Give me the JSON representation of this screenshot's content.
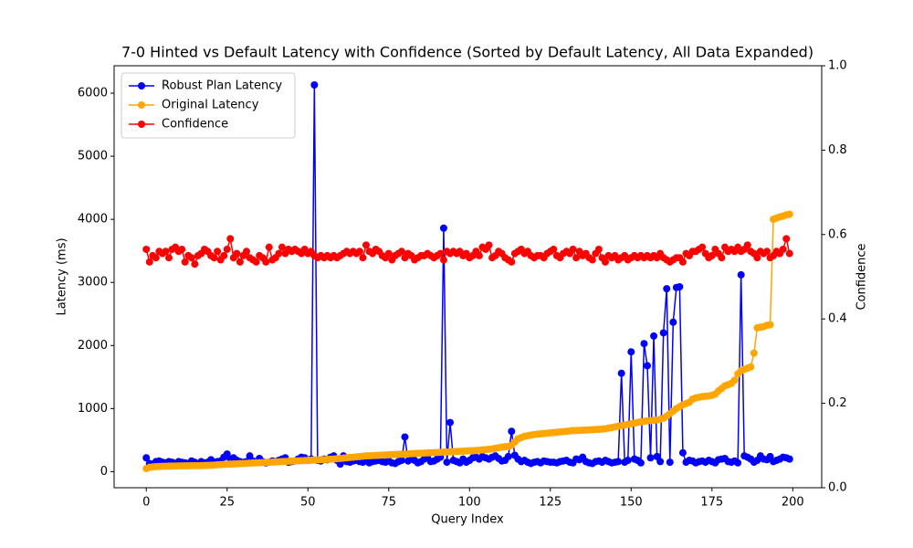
{
  "chart_data": {
    "type": "line",
    "title": "7-0 Hinted vs Default Latency with Confidence (Sorted by Default Latency, All Data Expanded)",
    "x_label": "Query Index",
    "y_label": "Latency (ms)",
    "y2_label": "Confidence",
    "xlim": [
      -9.95,
      208.95
    ],
    "xticks": [
      0,
      25,
      50,
      75,
      100,
      125,
      150,
      175,
      200
    ],
    "ylim": [
      -254,
      6434
    ],
    "yticks": [
      0,
      1000,
      2000,
      3000,
      4000,
      5000,
      6000
    ],
    "y2lim": [
      0,
      1
    ],
    "y2ticks": [
      {
        "value": 0,
        "label": "0.0"
      },
      0.2,
      0.4,
      0.6,
      0.8,
      {
        "value": 1,
        "label": "1.0"
      }
    ],
    "legend": "upper left",
    "x": [
      0,
      1,
      2,
      3,
      4,
      5,
      6,
      7,
      8,
      9,
      10,
      11,
      12,
      13,
      14,
      15,
      16,
      17,
      18,
      19,
      20,
      21,
      22,
      23,
      24,
      25,
      26,
      27,
      28,
      29,
      30,
      31,
      32,
      33,
      34,
      35,
      36,
      37,
      38,
      39,
      40,
      41,
      42,
      43,
      44,
      45,
      46,
      47,
      48,
      49,
      50,
      51,
      52,
      53,
      54,
      55,
      56,
      57,
      58,
      59,
      60,
      61,
      62,
      63,
      64,
      65,
      66,
      67,
      68,
      69,
      70,
      71,
      72,
      73,
      74,
      75,
      76,
      77,
      78,
      79,
      80,
      81,
      82,
      83,
      84,
      85,
      86,
      87,
      88,
      89,
      90,
      91,
      92,
      93,
      94,
      95,
      96,
      97,
      98,
      99,
      100,
      101,
      102,
      103,
      104,
      105,
      106,
      107,
      108,
      109,
      110,
      111,
      112,
      113,
      114,
      115,
      116,
      117,
      118,
      119,
      120,
      121,
      122,
      123,
      124,
      125,
      126,
      127,
      128,
      129,
      130,
      131,
      132,
      133,
      134,
      135,
      136,
      137,
      138,
      139,
      140,
      141,
      142,
      143,
      144,
      145,
      146,
      147,
      148,
      149,
      150,
      151,
      152,
      153,
      154,
      155,
      156,
      157,
      158,
      159,
      160,
      161,
      162,
      163,
      164,
      165,
      166,
      167,
      168,
      169,
      170,
      171,
      172,
      173,
      174,
      175,
      176,
      177,
      178,
      179,
      180,
      181,
      182,
      183,
      184,
      185,
      186,
      187,
      188,
      189,
      190,
      191,
      192,
      193,
      194,
      195,
      196,
      197,
      198,
      199
    ],
    "series": [
      {
        "name": "Robust Plan Latency",
        "color": "#0000ff",
        "values": [
          220,
          130,
          120,
          160,
          170,
          150,
          140,
          160,
          150,
          130,
          160,
          150,
          140,
          130,
          170,
          150,
          120,
          160,
          140,
          150,
          190,
          150,
          160,
          170,
          230,
          280,
          200,
          220,
          180,
          160,
          150,
          160,
          250,
          170,
          150,
          210,
          160,
          140,
          150,
          170,
          160,
          180,
          200,
          220,
          150,
          160,
          170,
          200,
          230,
          220,
          180,
          200,
          6130,
          180,
          170,
          200,
          190,
          230,
          250,
          180,
          120,
          250,
          160,
          150,
          170,
          180,
          160,
          150,
          170,
          140,
          160,
          170,
          180,
          160,
          150,
          170,
          140,
          130,
          160,
          180,
          550,
          170,
          200,
          180,
          140,
          160,
          200,
          220,
          160,
          170,
          200,
          230,
          3860,
          150,
          780,
          180,
          160,
          140,
          200,
          150,
          180,
          220,
          230,
          200,
          240,
          220,
          200,
          230,
          250,
          210,
          170,
          180,
          240,
          640,
          260,
          200,
          160,
          180,
          150,
          130,
          150,
          160,
          140,
          170,
          160,
          150,
          150,
          140,
          160,
          170,
          180,
          150,
          140,
          200,
          190,
          230,
          160,
          140,
          130,
          160,
          170,
          150,
          180,
          160,
          140,
          150,
          160,
          1560,
          150,
          180,
          1900,
          200,
          180,
          140,
          2030,
          1680,
          220,
          2150,
          240,
          160,
          2200,
          2900,
          150,
          2370,
          2920,
          2930,
          300,
          150,
          180,
          170,
          140,
          160,
          170,
          150,
          180,
          160,
          140,
          190,
          200,
          210,
          160,
          150,
          170,
          140,
          3120,
          250,
          230,
          200,
          150,
          180,
          250,
          200,
          190,
          240,
          160,
          180,
          200,
          230,
          220,
          200
        ]
      },
      {
        "name": "Original Latency",
        "color": "#ffa500",
        "values": [
          50,
          70,
          75,
          80,
          82,
          85,
          87,
          88,
          90,
          90,
          92,
          92,
          93,
          94,
          95,
          95,
          96,
          97,
          98,
          100,
          102,
          105,
          110,
          112,
          115,
          118,
          120,
          122,
          125,
          128,
          130,
          132,
          135,
          138,
          140,
          142,
          145,
          147,
          150,
          152,
          155,
          157,
          160,
          162,
          165,
          167,
          170,
          172,
          175,
          177,
          180,
          182,
          185,
          187,
          190,
          192,
          195,
          198,
          200,
          205,
          210,
          215,
          220,
          225,
          230,
          235,
          240,
          245,
          250,
          252,
          255,
          258,
          260,
          262,
          265,
          267,
          270,
          272,
          275,
          277,
          280,
          282,
          285,
          288,
          290,
          292,
          295,
          298,
          300,
          302,
          305,
          307,
          310,
          312,
          315,
          318,
          320,
          322,
          325,
          328,
          330,
          333,
          336,
          340,
          345,
          350,
          355,
          360,
          370,
          380,
          390,
          395,
          400,
          420,
          470,
          520,
          540,
          560,
          570,
          580,
          590,
          595,
          600,
          605,
          610,
          615,
          620,
          625,
          630,
          635,
          640,
          645,
          650,
          652,
          655,
          658,
          660,
          662,
          665,
          668,
          670,
          675,
          680,
          690,
          700,
          710,
          720,
          730,
          740,
          750,
          760,
          770,
          780,
          790,
          800,
          805,
          810,
          815,
          820,
          830,
          850,
          880,
          920,
          960,
          1000,
          1030,
          1060,
          1080,
          1100,
          1150,
          1170,
          1180,
          1190,
          1195,
          1200,
          1210,
          1230,
          1280,
          1320,
          1360,
          1380,
          1400,
          1450,
          1550,
          1600,
          1620,
          1640,
          1660,
          1880,
          2280,
          2290,
          2300,
          2320,
          2330,
          4000,
          4020,
          4040,
          4050,
          4070,
          4080
        ]
      },
      {
        "name": "Confidence",
        "color": "#ff0000",
        "axis": "y2",
        "values": [
          0.565,
          0.535,
          0.55,
          0.545,
          0.56,
          0.555,
          0.56,
          0.545,
          0.565,
          0.57,
          0.56,
          0.565,
          0.535,
          0.55,
          0.545,
          0.53,
          0.55,
          0.555,
          0.565,
          0.56,
          0.55,
          0.545,
          0.56,
          0.54,
          0.55,
          0.565,
          0.59,
          0.545,
          0.555,
          0.535,
          0.55,
          0.56,
          0.545,
          0.54,
          0.535,
          0.55,
          0.545,
          0.535,
          0.57,
          0.54,
          0.545,
          0.555,
          0.57,
          0.555,
          0.565,
          0.56,
          0.565,
          0.56,
          0.555,
          0.565,
          0.555,
          0.56,
          0.55,
          0.545,
          0.55,
          0.545,
          0.55,
          0.545,
          0.55,
          0.545,
          0.55,
          0.555,
          0.56,
          0.555,
          0.56,
          0.555,
          0.56,
          0.545,
          0.575,
          0.56,
          0.555,
          0.565,
          0.56,
          0.55,
          0.545,
          0.555,
          0.54,
          0.55,
          0.555,
          0.56,
          0.545,
          0.555,
          0.55,
          0.54,
          0.545,
          0.55,
          0.55,
          0.555,
          0.55,
          0.545,
          0.55,
          0.555,
          0.54,
          0.56,
          0.555,
          0.56,
          0.555,
          0.56,
          0.55,
          0.555,
          0.545,
          0.55,
          0.56,
          0.55,
          0.57,
          0.565,
          0.575,
          0.545,
          0.55,
          0.56,
          0.555,
          0.545,
          0.54,
          0.535,
          0.555,
          0.56,
          0.565,
          0.555,
          0.56,
          0.55,
          0.545,
          0.55,
          0.55,
          0.545,
          0.555,
          0.56,
          0.565,
          0.55,
          0.545,
          0.555,
          0.56,
          0.555,
          0.565,
          0.545,
          0.56,
          0.55,
          0.555,
          0.545,
          0.54,
          0.555,
          0.565,
          0.545,
          0.535,
          0.55,
          0.545,
          0.55,
          0.54,
          0.545,
          0.55,
          0.54,
          0.545,
          0.55,
          0.545,
          0.55,
          0.545,
          0.55,
          0.545,
          0.55,
          0.545,
          0.555,
          0.545,
          0.54,
          0.535,
          0.54,
          0.545,
          0.545,
          0.535,
          0.555,
          0.55,
          0.56,
          0.56,
          0.565,
          0.57,
          0.555,
          0.545,
          0.55,
          0.565,
          0.555,
          0.545,
          0.57,
          0.56,
          0.565,
          0.56,
          0.57,
          0.56,
          0.565,
          0.575,
          0.56,
          0.555,
          0.545,
          0.56,
          0.555,
          0.56,
          0.545,
          0.55,
          0.56,
          0.555,
          0.565,
          0.59,
          0.555
        ]
      }
    ]
  }
}
